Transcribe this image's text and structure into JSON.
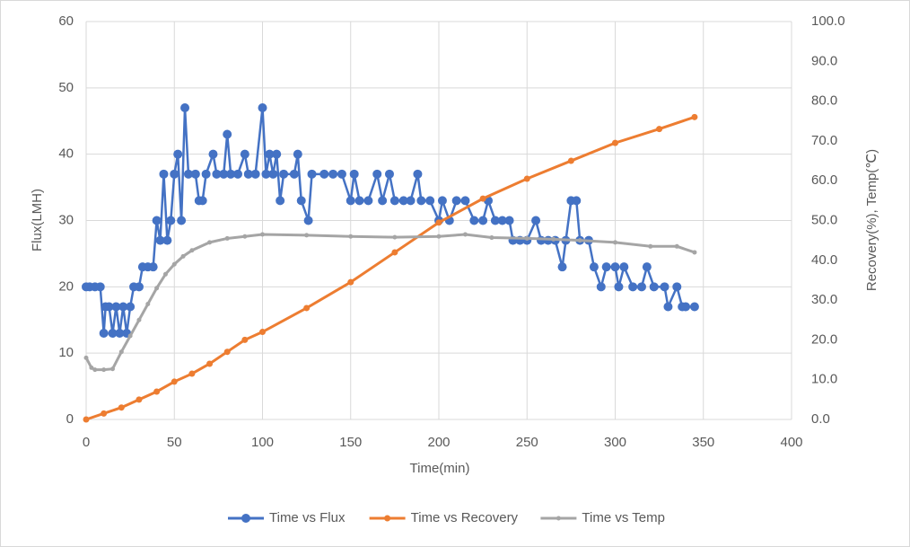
{
  "chart_data": {
    "type": "line",
    "x_label": "Time(min)",
    "y_label": "Flux(LMH)",
    "y2_label": "Recovery(%), Temp(℃)",
    "xlim": [
      0,
      400
    ],
    "xticks": [
      0,
      50,
      100,
      150,
      200,
      250,
      300,
      350,
      400
    ],
    "ylim": [
      0,
      60
    ],
    "yticks": [
      0,
      10,
      20,
      30,
      40,
      50,
      60
    ],
    "y2lim": [
      0,
      100
    ],
    "y2ticks": [
      {
        "value": 0,
        "label": "0.0"
      },
      {
        "value": 10,
        "label": "10.0"
      },
      {
        "value": 20,
        "label": "20.0"
      },
      {
        "value": 30,
        "label": "30.0"
      },
      {
        "value": 40,
        "label": "40.0"
      },
      {
        "value": 50,
        "label": "50.0"
      },
      {
        "value": 60,
        "label": "60.0"
      },
      {
        "value": 70,
        "label": "70.0"
      },
      {
        "value": 80,
        "label": "80.0"
      },
      {
        "value": 90,
        "label": "90.0"
      },
      {
        "value": 100,
        "label": "100.0"
      }
    ],
    "grid": true,
    "legend": "bottom",
    "series": [
      {
        "name": "Time vs Flux",
        "color": "#4472c4",
        "marker_size": 5,
        "x": [
          0,
          2,
          5,
          8,
          10,
          11,
          13,
          15,
          17,
          19,
          21,
          23,
          25,
          27,
          30,
          32,
          35,
          38,
          40,
          42,
          44,
          46,
          48,
          50,
          52,
          54,
          56,
          58,
          62,
          64,
          66,
          68,
          72,
          74,
          78,
          80,
          82,
          86,
          90,
          92,
          96,
          100,
          102,
          104,
          106,
          108,
          110,
          112,
          118,
          120,
          122,
          126,
          128,
          135,
          140,
          145,
          150,
          152,
          155,
          160,
          165,
          168,
          172,
          175,
          180,
          184,
          188,
          190,
          195,
          200,
          202,
          206,
          210,
          215,
          220,
          225,
          228,
          232,
          236,
          240,
          242,
          246,
          250,
          255,
          258,
          262,
          266,
          270,
          272,
          275,
          278,
          280,
          285,
          288,
          292,
          295,
          300,
          302,
          305,
          310,
          315,
          318,
          322,
          328,
          330,
          335,
          338,
          340,
          345
        ],
        "values": [
          20,
          20,
          20,
          20,
          13,
          17,
          17,
          13,
          17,
          13,
          17,
          13,
          17,
          20,
          20,
          23,
          23,
          23,
          30,
          27,
          37,
          27,
          30,
          37,
          40,
          30,
          47,
          37,
          37,
          33,
          33,
          37,
          40,
          37,
          37,
          43,
          37,
          37,
          40,
          37,
          37,
          47,
          37,
          40,
          37,
          40,
          33,
          37,
          37,
          40,
          33,
          30,
          37,
          37,
          37,
          37,
          33,
          37,
          33,
          33,
          37,
          33,
          37,
          33,
          33,
          33,
          37,
          33,
          33,
          30,
          33,
          30,
          33,
          33,
          30,
          30,
          33,
          30,
          30,
          30,
          27,
          27,
          27,
          30,
          27,
          27,
          27,
          23,
          27,
          33,
          33,
          27,
          27,
          23,
          20,
          23,
          23,
          20,
          23,
          20,
          20,
          23,
          20,
          20,
          17,
          20,
          17,
          17,
          17
        ]
      },
      {
        "name": "Time vs Recovery",
        "color": "#ed7d31",
        "axis": "y2",
        "marker_size": 3.5,
        "x": [
          0,
          10,
          20,
          30,
          40,
          50,
          60,
          70,
          80,
          90,
          100,
          125,
          150,
          175,
          200,
          225,
          250,
          275,
          300,
          325,
          345
        ],
        "values": [
          0,
          1.5,
          3,
          5,
          7,
          9.5,
          11.5,
          14,
          17,
          20,
          22,
          28,
          34.5,
          42,
          49.5,
          55.5,
          60.5,
          65,
          69.5,
          73,
          76
        ]
      },
      {
        "name": "Time vs Temp",
        "color": "#a5a5a5",
        "axis": "y2",
        "marker_size": 2.5,
        "x": [
          0,
          3,
          5,
          10,
          15,
          20,
          25,
          30,
          35,
          40,
          45,
          50,
          55,
          60,
          70,
          80,
          90,
          100,
          125,
          150,
          175,
          200,
          215,
          230,
          250,
          265,
          280,
          300,
          320,
          335,
          345
        ],
        "values": [
          15.5,
          13,
          12.5,
          12.5,
          12.7,
          17,
          21,
          25,
          29,
          33,
          36.5,
          39,
          41,
          42.5,
          44.5,
          45.5,
          46,
          46.5,
          46.3,
          46,
          45.8,
          46,
          46.5,
          45.7,
          45.5,
          45.3,
          45,
          44.5,
          43.5,
          43.5,
          42
        ]
      }
    ]
  }
}
